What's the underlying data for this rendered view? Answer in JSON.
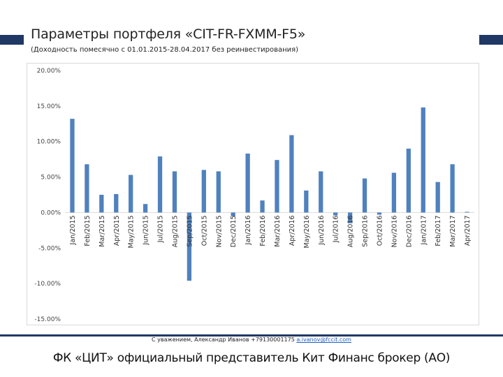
{
  "header": {
    "title": "Параметры портфеля «CIT-FR-FXMM-F5»",
    "subtitle": "(Доходность помесячно с 01.01.2015-28.04.2017 без реинвестирования)"
  },
  "footer": {
    "contact_prefix": "С уважением, Александр Иванов +79130001175 ",
    "contact_email": "a.ivanov@fccit.com",
    "tagline": "ФК «ЦИТ» официальный представитель Кит Финанс брокер (АО)"
  },
  "colors": {
    "bar": "#4f81bd",
    "accent": "#1f3864",
    "grid": "#d9d9d9"
  },
  "chart_data": {
    "type": "bar",
    "title": "",
    "xlabel": "",
    "ylabel": "",
    "ylim": [
      -15,
      20
    ],
    "ytick_step": 5,
    "grid": false,
    "yticks": [
      "20.00%",
      "15.00%",
      "10.00%",
      "5.00%",
      "0.00%",
      "-5.00%",
      "-10.00%",
      "-15.00%"
    ],
    "categories": [
      "Jan/2015",
      "Feb/2015",
      "Mar/2015",
      "Apr/2015",
      "May/2015",
      "Jun/2015",
      "Jul/2015",
      "Aug/2015",
      "Sep/2015",
      "Oct/2015",
      "Nov/2015",
      "Dec/2015",
      "Jan/2016",
      "Feb/2016",
      "Mar/2016",
      "Apr/2016",
      "May/2016",
      "Jun/2016",
      "Jul/2016",
      "Aug/2016",
      "Sep/2016",
      "Oct/2016",
      "Nov/2016",
      "Dec/2016",
      "Jan/2017",
      "Feb/2017",
      "Mar/2017",
      "Apr/2017"
    ],
    "series": [
      {
        "values": [
          13.2,
          6.8,
          2.5,
          2.6,
          5.3,
          1.2,
          7.9,
          5.8,
          -9.6,
          6.0,
          5.8,
          -0.5,
          8.3,
          1.7,
          7.4,
          10.9,
          3.1,
          5.8,
          -0.4,
          -1.5,
          4.8,
          -0.3,
          5.6,
          9.0,
          14.8,
          4.3,
          6.8,
          0.1
        ]
      }
    ]
  }
}
